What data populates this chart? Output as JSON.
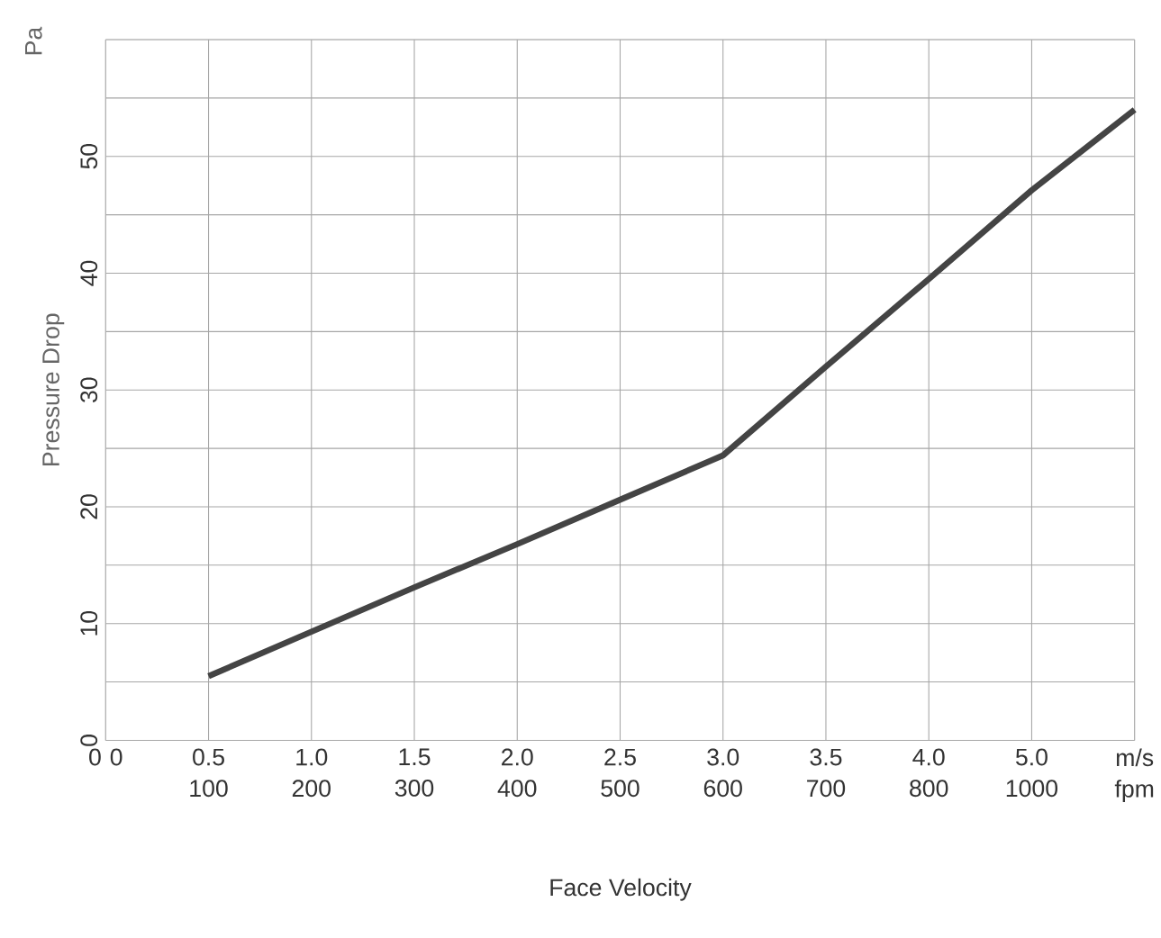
{
  "chart_data": {
    "type": "line",
    "xlabel": "Face Velocity",
    "ylabel": "Pressure Drop",
    "annotations": [
      "Pa"
    ],
    "categories": [
      "0 0",
      "0.5 100",
      "1.0 200",
      "1.5 300",
      "2.0 400",
      "2.5 500",
      "3.0 600",
      "3.5 700",
      "4.0 800",
      "5.0 1000",
      "m/s fpm"
    ],
    "values": [
      null,
      5.5,
      9.3,
      13.1,
      16.8,
      20.6,
      24.4,
      32.0,
      39.5,
      47.1,
      54.0
    ],
    "color": "#444444",
    "ylim": [
      0,
      60
    ],
    "yticks": [
      0,
      {
        "value": 5,
        "label": null
      },
      10,
      {
        "value": 15,
        "label": null
      },
      20,
      {
        "value": 25,
        "label": null
      },
      30,
      {
        "value": 35,
        "label": null
      },
      40,
      {
        "value": 45,
        "label": null
      },
      50,
      {
        "value": 55,
        "label": null
      },
      {
        "value": 60,
        "label": null
      }
    ],
    "grid": true
  }
}
